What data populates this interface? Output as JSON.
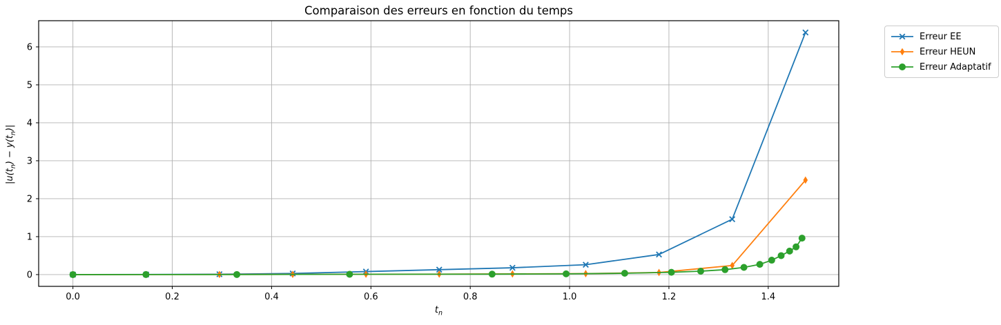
{
  "chart_data": {
    "type": "line",
    "title": "Comparaison des erreurs en fonction du temps",
    "xlabel": "t_n",
    "ylabel": "|u(t_n) − y(t_n)|",
    "xlabel_parts": {
      "base": "t",
      "sub": "n"
    },
    "ylabel_parts": {
      "p1": "|u(t",
      "s1": "n",
      "p2": ") − y(t",
      "s2": "n",
      "p3": ")|"
    },
    "xlim": [
      -0.069,
      1.542
    ],
    "ylim": [
      -0.31,
      6.69
    ],
    "xtick_values": [
      0.0,
      0.2,
      0.4,
      0.6,
      0.8,
      1.0,
      1.2,
      1.4
    ],
    "xtick_labels": [
      "0.0",
      "0.2",
      "0.4",
      "0.6",
      "0.8",
      "1.0",
      "1.2",
      "1.4"
    ],
    "ytick_values": [
      0,
      1,
      2,
      3,
      4,
      5,
      6
    ],
    "ytick_labels": [
      "0",
      "1",
      "2",
      "3",
      "4",
      "5",
      "6"
    ],
    "grid": true,
    "grid_color": "#b0b0b0",
    "axis_color": "#000000",
    "background": "#ffffff",
    "legend_position": "outside-upper-right",
    "series": [
      {
        "name": "Erreur EE",
        "color": "#1f77b4",
        "marker": "x",
        "x": [
          0.0,
          0.1475,
          0.295,
          0.4425,
          0.59,
          0.7375,
          0.885,
          1.0325,
          1.18,
          1.3275,
          1.475
        ],
        "y": [
          0.0,
          0.003,
          0.01,
          0.03,
          0.08,
          0.13,
          0.18,
          0.26,
          0.53,
          1.46,
          6.38
        ]
      },
      {
        "name": "Erreur HEUN",
        "color": "#ff7f0e",
        "marker": "thin-diamond",
        "x": [
          0.0,
          0.1475,
          0.295,
          0.4425,
          0.59,
          0.7375,
          0.885,
          1.0325,
          1.18,
          1.3275,
          1.475
        ],
        "y": [
          0.0,
          0.001,
          0.003,
          0.006,
          0.01,
          0.013,
          0.018,
          0.025,
          0.055,
          0.24,
          2.49
        ]
      },
      {
        "name": "Erreur Adaptatif",
        "color": "#2ca02c",
        "marker": "circle",
        "x": [
          0.0,
          0.147,
          0.33,
          0.557,
          0.844,
          0.993,
          1.111,
          1.205,
          1.264,
          1.313,
          1.351,
          1.383,
          1.407,
          1.426,
          1.443,
          1.456,
          1.468
        ],
        "y": [
          0.0,
          0.001,
          0.002,
          0.008,
          0.012,
          0.02,
          0.035,
          0.06,
          0.09,
          0.13,
          0.19,
          0.27,
          0.38,
          0.5,
          0.62,
          0.73,
          0.96
        ]
      }
    ]
  }
}
